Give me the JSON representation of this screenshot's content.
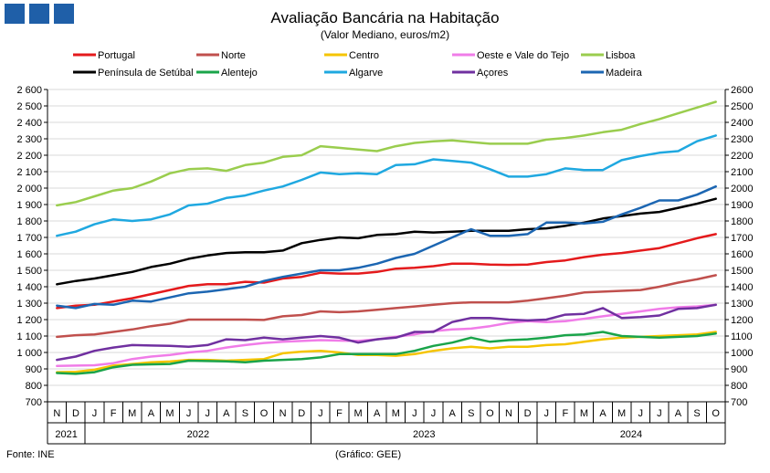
{
  "header": {
    "title": "Avaliação Bancária na Habitação",
    "subtitle": "(Valor Mediano, euros/m2)"
  },
  "footer": {
    "source": "Fonte: INE",
    "credit": "(Gráfico: GEE)"
  },
  "chart_data": {
    "type": "line",
    "title": "Avaliação Bancária na Habitação",
    "subtitle": "(Valor Mediano, euros/m2)",
    "ylim": [
      700,
      2600
    ],
    "ytick_step": 100,
    "yticks_left": [
      "700",
      "800",
      "900",
      "1 000",
      "1 100",
      "1 200",
      "1 300",
      "1 400",
      "1 500",
      "1 600",
      "1 700",
      "1 800",
      "1 900",
      "2 000",
      "2 100",
      "2 200",
      "2 300",
      "2 400",
      "2 500",
      "2 600"
    ],
    "yticks_right": [
      "700",
      "800",
      "900",
      "1000",
      "1100",
      "1200",
      "1300",
      "1400",
      "1500",
      "1600",
      "1700",
      "1800",
      "1900",
      "2000",
      "2100",
      "2200",
      "2300",
      "2400",
      "2500",
      "2600"
    ],
    "grid": true,
    "legend_position": "top",
    "categories": [
      "N",
      "D",
      "J",
      "F",
      "M",
      "A",
      "M",
      "J",
      "J",
      "A",
      "S",
      "O",
      "N",
      "D",
      "J",
      "F",
      "M",
      "A",
      "M",
      "J",
      "J",
      "A",
      "S",
      "O",
      "N",
      "D",
      "J",
      "F",
      "M",
      "A",
      "M",
      "J",
      "J",
      "A",
      "S",
      "O"
    ],
    "years": [
      {
        "label": "2021",
        "from": 0,
        "to": 1
      },
      {
        "label": "2022",
        "from": 2,
        "to": 13
      },
      {
        "label": "2023",
        "from": 14,
        "to": 25
      },
      {
        "label": "2024",
        "from": 26,
        "to": 35
      }
    ],
    "series": [
      {
        "name": "Portugal",
        "color": "#e41a1c",
        "values": [
          1270,
          1285,
          1290,
          1310,
          1330,
          1355,
          1380,
          1405,
          1415,
          1415,
          1430,
          1425,
          1450,
          1460,
          1485,
          1480,
          1480,
          1490,
          1510,
          1515,
          1525,
          1540,
          1540,
          1535,
          1533,
          1535,
          1550,
          1560,
          1580,
          1595,
          1605,
          1620,
          1635,
          1665,
          1695,
          1720
        ]
      },
      {
        "name": "Norte",
        "color": "#c0504d",
        "values": [
          1095,
          1105,
          1110,
          1125,
          1140,
          1160,
          1175,
          1200,
          1200,
          1200,
          1200,
          1198,
          1220,
          1228,
          1250,
          1245,
          1250,
          1260,
          1270,
          1280,
          1290,
          1300,
          1305,
          1305,
          1305,
          1315,
          1330,
          1345,
          1365,
          1370,
          1375,
          1380,
          1400,
          1425,
          1445,
          1470
        ]
      },
      {
        "name": "Centro",
        "color": "#f5c400",
        "values": [
          880,
          882,
          895,
          920,
          930,
          940,
          945,
          955,
          955,
          950,
          955,
          960,
          995,
          1005,
          1010,
          1000,
          985,
          985,
          980,
          990,
          1010,
          1025,
          1035,
          1025,
          1035,
          1035,
          1045,
          1050,
          1065,
          1080,
          1090,
          1095,
          1100,
          1105,
          1110,
          1125
        ]
      },
      {
        "name": "Oeste e Vale do Tejo",
        "color": "#f07ce8",
        "values": [
          918,
          920,
          922,
          935,
          960,
          975,
          985,
          1000,
          1010,
          1030,
          1045,
          1058,
          1065,
          1070,
          1075,
          1072,
          1070,
          1080,
          1095,
          1110,
          1130,
          1140,
          1145,
          1160,
          1180,
          1190,
          1185,
          1190,
          1205,
          1220,
          1235,
          1250,
          1265,
          1275,
          1280,
          1290
        ]
      },
      {
        "name": "Lisboa",
        "color": "#9acd4e",
        "values": [
          1895,
          1915,
          1950,
          1985,
          2000,
          2040,
          2090,
          2115,
          2120,
          2105,
          2140,
          2155,
          2190,
          2200,
          2255,
          2245,
          2235,
          2225,
          2255,
          2275,
          2285,
          2290,
          2280,
          2270,
          2270,
          2270,
          2295,
          2305,
          2320,
          2340,
          2355,
          2390,
          2420,
          2455,
          2490,
          2525
        ]
      },
      {
        "name": "Península de Setúbal",
        "color": "#000000",
        "values": [
          1415,
          1435,
          1450,
          1470,
          1490,
          1520,
          1540,
          1570,
          1590,
          1605,
          1610,
          1610,
          1620,
          1665,
          1685,
          1700,
          1695,
          1715,
          1720,
          1735,
          1730,
          1735,
          1740,
          1740,
          1740,
          1750,
          1755,
          1770,
          1790,
          1815,
          1830,
          1845,
          1855,
          1880,
          1905,
          1935
        ]
      },
      {
        "name": "Alentejo",
        "color": "#1aa44a",
        "values": [
          875,
          870,
          880,
          910,
          925,
          928,
          930,
          950,
          948,
          946,
          940,
          950,
          955,
          960,
          970,
          990,
          990,
          990,
          990,
          1010,
          1040,
          1060,
          1090,
          1065,
          1075,
          1080,
          1090,
          1105,
          1110,
          1125,
          1100,
          1095,
          1090,
          1095,
          1100,
          1115
        ]
      },
      {
        "name": "Algarve",
        "color": "#1fa8e0",
        "values": [
          1710,
          1735,
          1780,
          1810,
          1800,
          1810,
          1840,
          1895,
          1905,
          1940,
          1955,
          1985,
          2010,
          2050,
          2095,
          2085,
          2090,
          2085,
          2140,
          2145,
          2175,
          2165,
          2155,
          2115,
          2070,
          2070,
          2085,
          2120,
          2110,
          2110,
          2170,
          2195,
          2215,
          2225,
          2285,
          2320
        ]
      },
      {
        "name": "Açores",
        "color": "#7030a0",
        "values": [
          955,
          975,
          1010,
          1030,
          1045,
          1042,
          1040,
          1035,
          1045,
          1080,
          1075,
          1090,
          1080,
          1090,
          1100,
          1090,
          1060,
          1080,
          1090,
          1125,
          1125,
          1185,
          1210,
          1210,
          1200,
          1195,
          1200,
          1230,
          1235,
          1270,
          1210,
          1215,
          1225,
          1265,
          1270,
          1290
        ]
      },
      {
        "name": "Madeira",
        "color": "#1c66b2",
        "values": [
          1285,
          1270,
          1295,
          1290,
          1315,
          1310,
          1335,
          1360,
          1370,
          1385,
          1400,
          1435,
          1460,
          1480,
          1500,
          1500,
          1515,
          1540,
          1575,
          1600,
          1650,
          1700,
          1750,
          1710,
          1710,
          1720,
          1790,
          1790,
          1785,
          1795,
          1840,
          1880,
          1925,
          1925,
          1960,
          2010
        ]
      }
    ]
  }
}
